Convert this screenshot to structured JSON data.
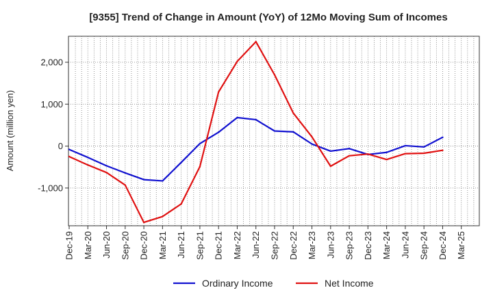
{
  "chart_data": {
    "type": "line",
    "title": "[9355]  Trend of Change in Amount (YoY) of 12Mo Moving Sum of Incomes",
    "xlabel": "",
    "ylabel": "Amount (million yen)",
    "ylim": [
      -1900,
      2620
    ],
    "yticks": [
      -1000,
      0,
      1000,
      2000
    ],
    "ytick_labels": [
      "-1,000",
      "0",
      "1,000",
      "2,000"
    ],
    "categories": [
      "Dec-19",
      "Mar-20",
      "Jun-20",
      "Sep-20",
      "Dec-20",
      "Mar-21",
      "Jun-21",
      "Sep-21",
      "Dec-21",
      "Mar-22",
      "Jun-22",
      "Sep-22",
      "Dec-22",
      "Mar-23",
      "Jun-23",
      "Sep-23",
      "Dec-23",
      "Mar-24",
      "Jun-24",
      "Sep-24",
      "Dec-24",
      "Mar-25"
    ],
    "grid": true,
    "legend_position": "bottom",
    "series": [
      {
        "name": "Ordinary Income",
        "color": "#1010d0",
        "values": [
          -80,
          -270,
          -470,
          -640,
          -800,
          -830,
          -390,
          60,
          330,
          680,
          630,
          360,
          340,
          50,
          -120,
          -60,
          -200,
          -150,
          10,
          -20,
          210,
          null
        ]
      },
      {
        "name": "Net Income",
        "color": "#e01010",
        "values": [
          -250,
          -450,
          -630,
          -930,
          -1820,
          -1680,
          -1380,
          -490,
          1290,
          2020,
          2490,
          1700,
          790,
          220,
          -480,
          -230,
          -190,
          -320,
          -180,
          -170,
          -100,
          null
        ]
      }
    ]
  }
}
